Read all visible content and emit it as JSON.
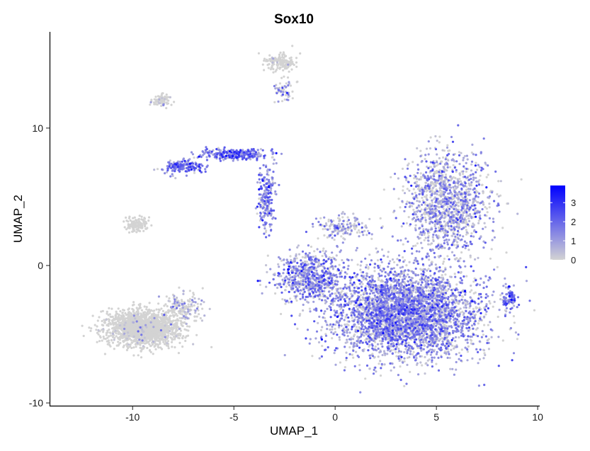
{
  "chart_data": {
    "type": "scatter",
    "title": "Sox10",
    "xlabel": "UMAP_1",
    "ylabel": "UMAP_2",
    "xlim": [
      -14.1,
      10.1
    ],
    "ylim": [
      -10.2,
      17.0
    ],
    "xticks": [
      -10,
      -5,
      0,
      5,
      10
    ],
    "xtick_labels": [
      "-10",
      "-5",
      "0",
      "5",
      "10"
    ],
    "yticks": [
      -10,
      0,
      10
    ],
    "ytick_labels": [
      "-10",
      "0",
      "10"
    ],
    "grid": false,
    "colormap": {
      "low": "#d3d3d3",
      "high": "#0000ff",
      "min": 0,
      "max": 3.9
    },
    "legend": {
      "position": "right",
      "ticks": [
        0,
        1,
        2,
        3
      ],
      "tick_labels": [
        "0",
        "1",
        "2",
        "3"
      ]
    },
    "clusters": [
      {
        "name": "bottom-left-cluster",
        "center": [
          -9.5,
          -4.5
        ],
        "spread": [
          1.3,
          0.9
        ],
        "points": 1800,
        "mean_expression": 0.05
      },
      {
        "name": "bottom-left-arm",
        "center": [
          -7.5,
          -3.0
        ],
        "spread": [
          0.7,
          0.7
        ],
        "points": 150,
        "mean_expression": 0.6
      },
      {
        "name": "small-left-cluster",
        "center": [
          -9.8,
          3.0
        ],
        "spread": [
          0.4,
          0.35
        ],
        "points": 120,
        "mean_expression": 0.0
      },
      {
        "name": "left-upper-small-cluster",
        "center": [
          -8.6,
          12.0
        ],
        "spread": [
          0.35,
          0.3
        ],
        "points": 90,
        "mean_expression": 0.1
      },
      {
        "name": "top-cluster",
        "center": [
          -2.7,
          14.8
        ],
        "spread": [
          0.6,
          0.45
        ],
        "points": 160,
        "mean_expression": 0.05
      },
      {
        "name": "top-cluster-tail",
        "center": [
          -2.6,
          12.8
        ],
        "spread": [
          0.35,
          0.6
        ],
        "points": 50,
        "mean_expression": 0.8
      },
      {
        "name": "arc-left",
        "center": [
          -7.5,
          7.2
        ],
        "spread": [
          0.7,
          0.35
        ],
        "points": 180,
        "mean_expression": 1.5
      },
      {
        "name": "arc-top",
        "center": [
          -5.0,
          8.1
        ],
        "spread": [
          1.2,
          0.3
        ],
        "points": 260,
        "mean_expression": 1.6
      },
      {
        "name": "arc-right",
        "center": [
          -3.4,
          5.0
        ],
        "spread": [
          0.3,
          1.8
        ],
        "points": 220,
        "mean_expression": 1.4
      },
      {
        "name": "central-branch",
        "center": [
          0.4,
          2.8
        ],
        "spread": [
          0.9,
          0.6
        ],
        "points": 160,
        "mean_expression": 0.9
      },
      {
        "name": "large-cluster-core",
        "center": [
          3.5,
          -3.5
        ],
        "spread": [
          2.6,
          2.3
        ],
        "points": 3800,
        "mean_expression": 1.2
      },
      {
        "name": "large-cluster-left-arm",
        "center": [
          -1.2,
          -0.8
        ],
        "spread": [
          1.3,
          1.4
        ],
        "points": 700,
        "mean_expression": 1.2
      },
      {
        "name": "large-cluster-upper-right",
        "center": [
          5.5,
          4.5
        ],
        "spread": [
          1.4,
          2.6
        ],
        "points": 1300,
        "mean_expression": 1.0
      },
      {
        "name": "large-cluster-right-tip",
        "center": [
          8.6,
          -2.5
        ],
        "spread": [
          0.25,
          0.6
        ],
        "points": 80,
        "mean_expression": 1.5
      }
    ]
  }
}
